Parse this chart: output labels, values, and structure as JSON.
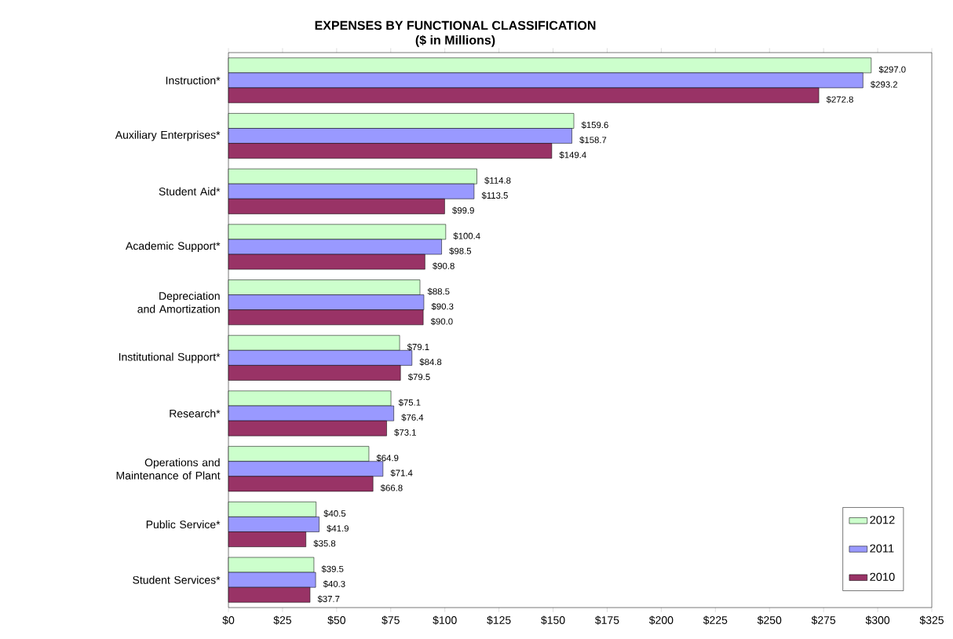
{
  "chart_data": {
    "type": "bar",
    "orientation": "horizontal",
    "title": "EXPENSES BY FUNCTIONAL  CLASSIFICATION",
    "subtitle": "($ in Millions)",
    "categories": [
      "Instruction*",
      "Auxiliary Enterprises*",
      "Student Aid*",
      "Academic Support*",
      "Depreciation and Amortization",
      "Institutional Support*",
      "Research*",
      "Operations and Maintenance of Plant",
      "Public Service*",
      "Student Services*"
    ],
    "series": [
      {
        "name": "2012",
        "color": "#ccffcc",
        "values": [
          297.0,
          159.6,
          114.8,
          100.4,
          88.5,
          79.1,
          75.1,
          64.9,
          40.5,
          39.5
        ],
        "value_labels": [
          "$297.0",
          "$159.6",
          "$114.8",
          "$100.4",
          "$88.5",
          "$79.1",
          "$75.1",
          "$64.9",
          "$40.5",
          "$39.5"
        ]
      },
      {
        "name": "2011",
        "color": "#9999ff",
        "values": [
          293.2,
          158.7,
          113.5,
          98.5,
          90.3,
          84.8,
          76.4,
          71.4,
          41.9,
          40.3
        ],
        "value_labels": [
          "$293.2",
          "$158.7",
          "$113.5",
          "$98.5",
          "$90.3",
          "$84.8",
          "$76.4",
          "$71.4",
          "$41.9",
          "$40.3"
        ]
      },
      {
        "name": "2010",
        "color": "#993366",
        "values": [
          272.8,
          149.4,
          99.9,
          90.8,
          90.0,
          79.5,
          73.1,
          66.8,
          35.8,
          37.7
        ],
        "value_labels": [
          "$272.8",
          "$149.4",
          "$99.9",
          "$90.8",
          "$90.0",
          "$79.5",
          "$73.1",
          "$66.8",
          "$35.8",
          "$37.7"
        ]
      }
    ],
    "xlim": [
      0,
      325
    ],
    "xticks": [
      {
        "value": 0,
        "label": "$0"
      },
      {
        "value": 25,
        "label": "$25"
      },
      {
        "value": 50,
        "label": "$50"
      },
      {
        "value": 75,
        "label": "$75"
      },
      {
        "value": 100,
        "label": "$100"
      },
      {
        "value": 125,
        "label": "$125"
      },
      {
        "value": 150,
        "label": "$150"
      },
      {
        "value": 175,
        "label": "$175"
      },
      {
        "value": 200,
        "label": "$200"
      },
      {
        "value": 225,
        "label": "$225"
      },
      {
        "value": 250,
        "label": "$250"
      },
      {
        "value": 275,
        "label": "$275"
      },
      {
        "value": 300,
        "label": "$300"
      },
      {
        "value": 325,
        "label": "$325"
      }
    ],
    "legend": "bottom right"
  }
}
